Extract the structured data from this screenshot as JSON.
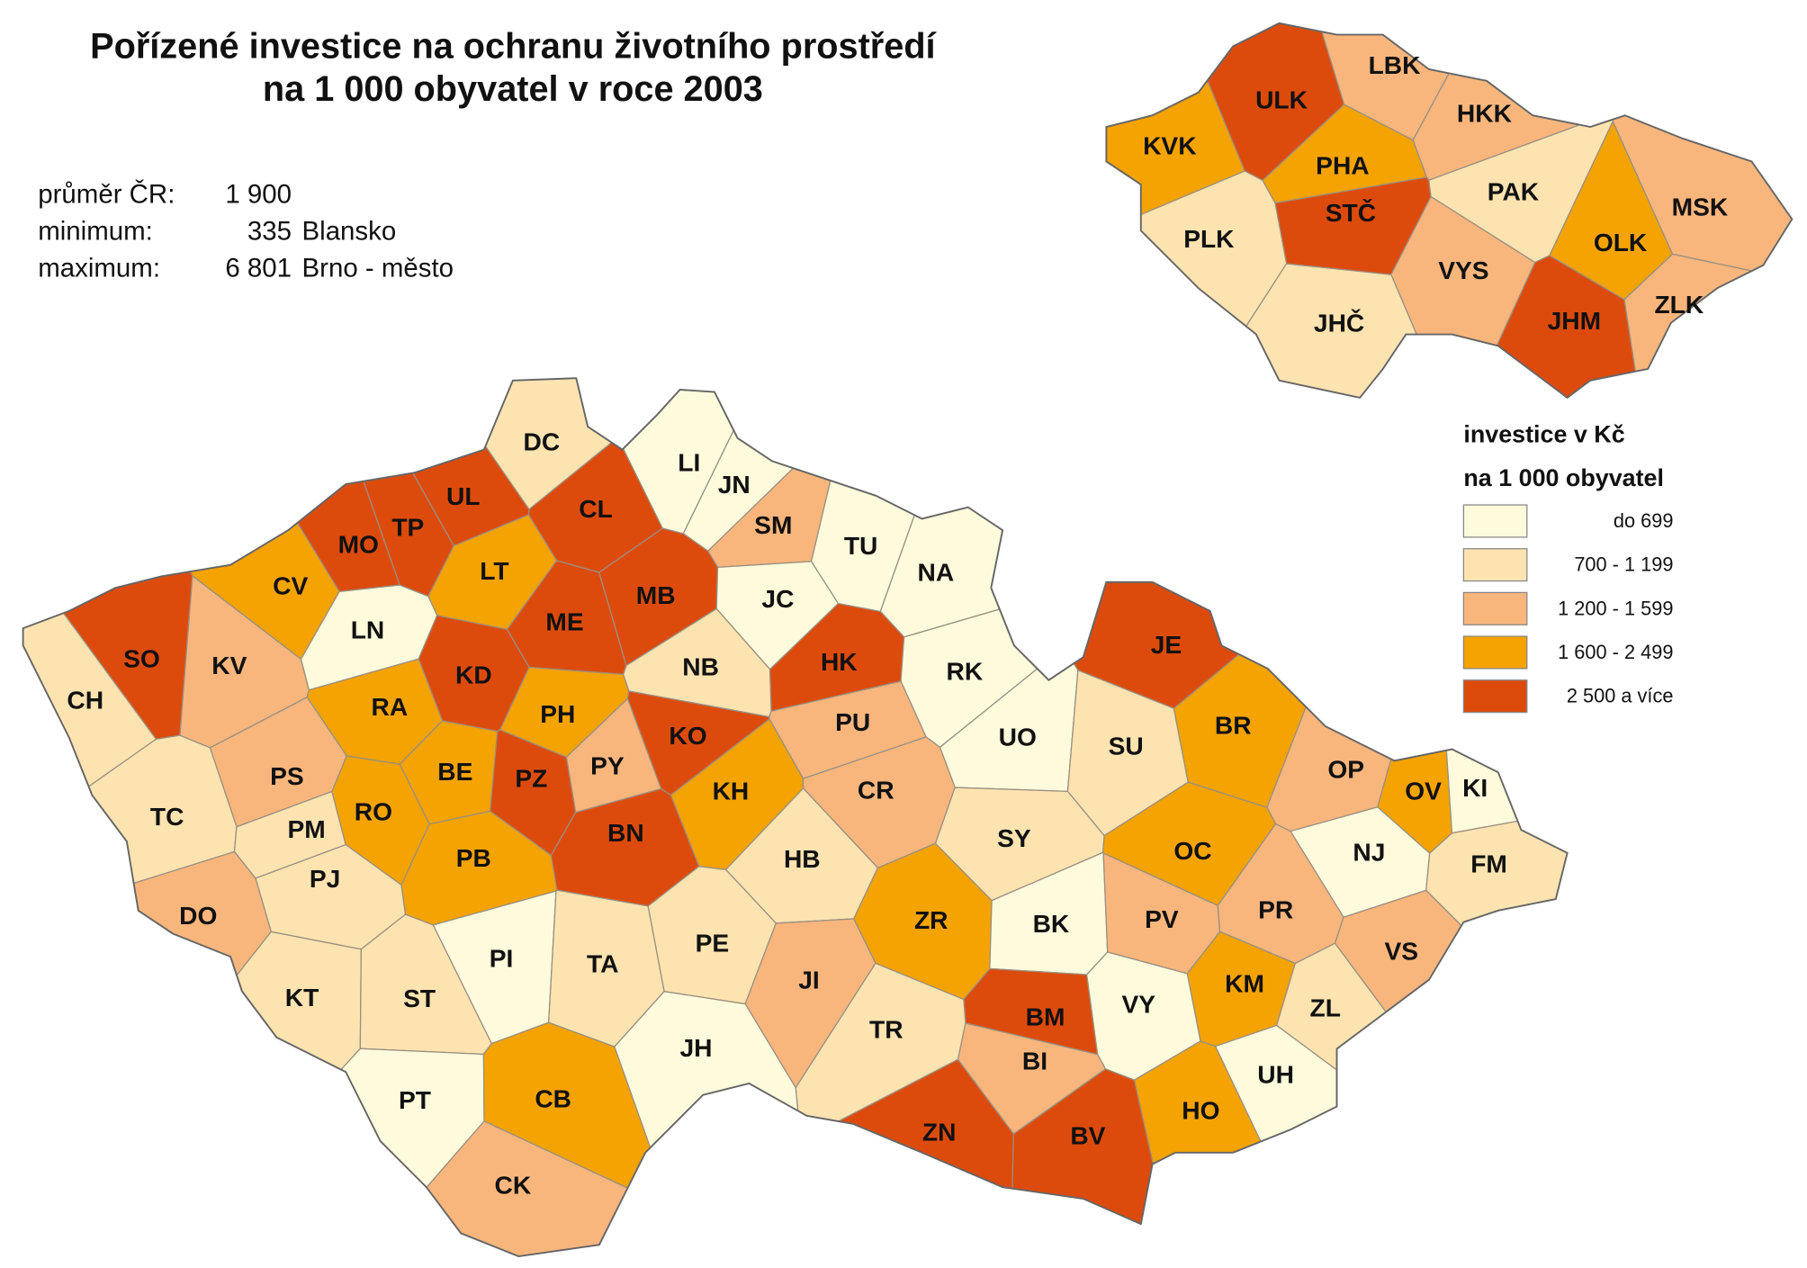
{
  "title": [
    "Pořízené investice na ochranu životního prostředí",
    "na 1 000 obyvatel v roce 2003"
  ],
  "stats": [
    {
      "label": "průměr ČR:",
      "number": "1 900"
    },
    {
      "label": "minimum:",
      "number": "335",
      "place": "Blansko"
    },
    {
      "label": "maximum:",
      "number": "6 801",
      "place": "Brno - město"
    }
  ],
  "legend": {
    "title": [
      "investice v Kč",
      "na 1 000 obyvatel"
    ],
    "classes": [
      {
        "label": "do 699",
        "color": "#fdfbdc"
      },
      {
        "label": "700 - 1 199",
        "color": "#fce3b0"
      },
      {
        "label": "1 200 - 1 599",
        "color": "#f8b67d"
      },
      {
        "label": "1 600 - 2 499",
        "color": "#f5a300"
      },
      {
        "label": "2 500 a více",
        "color": "#dd4b0c"
      }
    ]
  },
  "districts": [
    {
      "label": "DC",
      "color": "#fce3b0"
    },
    {
      "label": "CL",
      "color": "#dd4b0c"
    },
    {
      "label": "LI",
      "color": "#fdfbdc"
    },
    {
      "label": "JN",
      "color": "#fdfbdc"
    },
    {
      "label": "SM",
      "color": "#f8b67d"
    },
    {
      "label": "TU",
      "color": "#fdfbdc"
    },
    {
      "label": "NA",
      "color": "#fdfbdc"
    },
    {
      "label": "UL",
      "color": "#dd4b0c"
    },
    {
      "label": "TP",
      "color": "#dd4b0c"
    },
    {
      "label": "MO",
      "color": "#dd4b0c"
    },
    {
      "label": "CV",
      "color": "#f5a300"
    },
    {
      "label": "LT",
      "color": "#f5a300"
    },
    {
      "label": "LN",
      "color": "#fdfbdc"
    },
    {
      "label": "ME",
      "color": "#dd4b0c"
    },
    {
      "label": "MB",
      "color": "#dd4b0c"
    },
    {
      "label": "JC",
      "color": "#fdfbdc"
    },
    {
      "label": "SO",
      "color": "#dd4b0c"
    },
    {
      "label": "KV",
      "color": "#f8b67d"
    },
    {
      "label": "CH",
      "color": "#fce3b0"
    },
    {
      "label": "KD",
      "color": "#dd4b0c"
    },
    {
      "label": "RA",
      "color": "#f5a300"
    },
    {
      "label": "PH",
      "color": "#f5a300"
    },
    {
      "label": "NB",
      "color": "#fce3b0"
    },
    {
      "label": "HK",
      "color": "#dd4b0c"
    },
    {
      "label": "RK",
      "color": "#fdfbdc"
    },
    {
      "label": "JE",
      "color": "#dd4b0c"
    },
    {
      "label": "KO",
      "color": "#dd4b0c"
    },
    {
      "label": "PU",
      "color": "#f8b67d"
    },
    {
      "label": "UO",
      "color": "#fdfbdc"
    },
    {
      "label": "SU",
      "color": "#fce3b0"
    },
    {
      "label": "BR",
      "color": "#f5a300"
    },
    {
      "label": "OP",
      "color": "#f8b67d"
    },
    {
      "label": "OV",
      "color": "#f5a300"
    },
    {
      "label": "KI",
      "color": "#fdfbdc"
    },
    {
      "label": "PS",
      "color": "#f8b67d"
    },
    {
      "label": "BE",
      "color": "#f5a300"
    },
    {
      "label": "PZ",
      "color": "#dd4b0c"
    },
    {
      "label": "PY",
      "color": "#f8b67d"
    },
    {
      "label": "KH",
      "color": "#f5a300"
    },
    {
      "label": "CR",
      "color": "#f8b67d"
    },
    {
      "label": "TC",
      "color": "#fce3b0"
    },
    {
      "label": "PM",
      "color": "#fce3b0"
    },
    {
      "label": "RO",
      "color": "#f5a300"
    },
    {
      "label": "BN",
      "color": "#dd4b0c"
    },
    {
      "label": "SY",
      "color": "#fce3b0"
    },
    {
      "label": "OC",
      "color": "#f5a300"
    },
    {
      "label": "NJ",
      "color": "#fdfbdc"
    },
    {
      "label": "FM",
      "color": "#fce3b0"
    },
    {
      "label": "PJ",
      "color": "#fce3b0"
    },
    {
      "label": "PB",
      "color": "#f5a300"
    },
    {
      "label": "HB",
      "color": "#fce3b0"
    },
    {
      "label": "DO",
      "color": "#f8b67d"
    },
    {
      "label": "ZR",
      "color": "#f5a300"
    },
    {
      "label": "BK",
      "color": "#fdfbdc"
    },
    {
      "label": "PV",
      "color": "#f8b67d"
    },
    {
      "label": "PR",
      "color": "#f8b67d"
    },
    {
      "label": "VS",
      "color": "#f8b67d"
    },
    {
      "label": "PI",
      "color": "#fdfbdc"
    },
    {
      "label": "TA",
      "color": "#fce3b0"
    },
    {
      "label": "PE",
      "color": "#fce3b0"
    },
    {
      "label": "JI",
      "color": "#f8b67d"
    },
    {
      "label": "KM",
      "color": "#f5a300"
    },
    {
      "label": "KT",
      "color": "#fce3b0"
    },
    {
      "label": "ST",
      "color": "#fce3b0"
    },
    {
      "label": "BM",
      "color": "#dd4b0c"
    },
    {
      "label": "VY",
      "color": "#fdfbdc"
    },
    {
      "label": "ZL",
      "color": "#fce3b0"
    },
    {
      "label": "TR",
      "color": "#fce3b0"
    },
    {
      "label": "BI",
      "color": "#f8b67d"
    },
    {
      "label": "UH",
      "color": "#fdfbdc"
    },
    {
      "label": "JH",
      "color": "#fdfbdc"
    },
    {
      "label": "PT",
      "color": "#fdfbdc"
    },
    {
      "label": "CB",
      "color": "#f5a300"
    },
    {
      "label": "HO",
      "color": "#f5a300"
    },
    {
      "label": "ZN",
      "color": "#dd4b0c"
    },
    {
      "label": "BV",
      "color": "#dd4b0c"
    },
    {
      "label": "CK",
      "color": "#f8b67d"
    }
  ],
  "regions": [
    {
      "label": "KVK",
      "color": "#f5a300"
    },
    {
      "label": "ULK",
      "color": "#dd4b0c"
    },
    {
      "label": "LBK",
      "color": "#f8b67d"
    },
    {
      "label": "HKK",
      "color": "#f8b67d"
    },
    {
      "label": "PHA",
      "color": "#f5a300"
    },
    {
      "label": "STČ",
      "color": "#dd4b0c"
    },
    {
      "label": "PAK",
      "color": "#fce3b0"
    },
    {
      "label": "MSK",
      "color": "#f8b67d"
    },
    {
      "label": "OLK",
      "color": "#f5a300"
    },
    {
      "label": "PLK",
      "color": "#fce3b0"
    },
    {
      "label": "VYS",
      "color": "#f8b67d"
    },
    {
      "label": "ZLK",
      "color": "#f8b67d"
    },
    {
      "label": "JHČ",
      "color": "#fce3b0"
    },
    {
      "label": "JHM",
      "color": "#dd4b0c"
    }
  ]
}
